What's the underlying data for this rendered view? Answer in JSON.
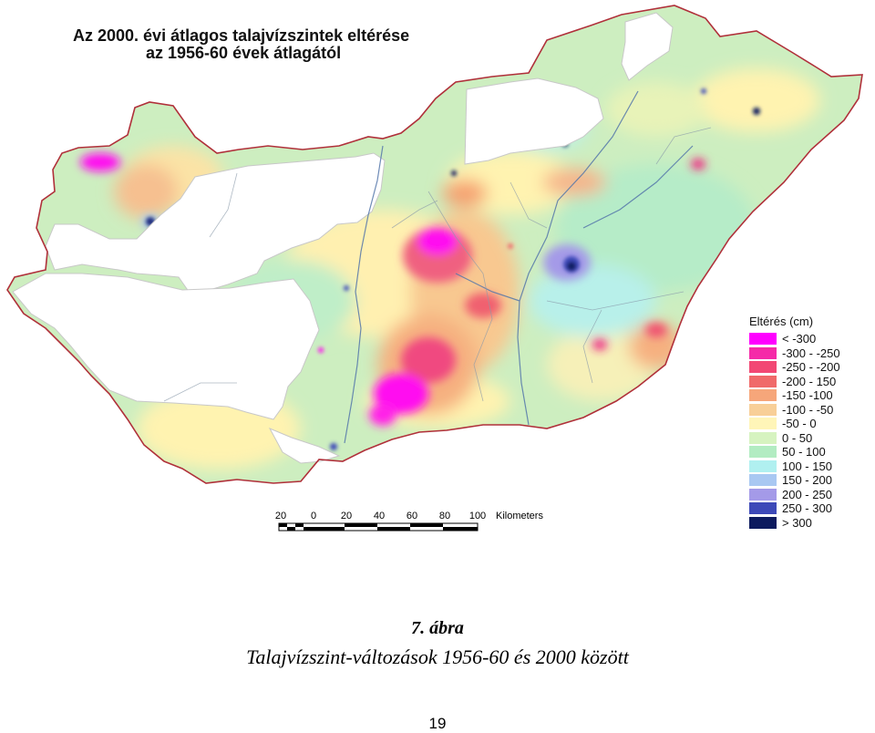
{
  "map": {
    "title_line1": "Az 2000. évi átlagos talajvízszintek eltérése",
    "title_line2": "az 1956-60 évek átlagától"
  },
  "legend": {
    "title": "Eltérés (cm)",
    "items": [
      {
        "label": "< -300",
        "color": "#ff00ff"
      },
      {
        "label": "-300 - -250",
        "color": "#f52aa8"
      },
      {
        "label": "-250 - -200",
        "color": "#f24874"
      },
      {
        "label": "-200 - 150",
        "color": "#f06a6a"
      },
      {
        "label": "-150 -100",
        "color": "#f6a67a"
      },
      {
        "label": "-100 - -50",
        "color": "#f8cf98"
      },
      {
        "label": "-50 - 0",
        "color": "#fff5b8"
      },
      {
        "label": "0 - 50",
        "color": "#d6f3c0"
      },
      {
        "label": "50 - 100",
        "color": "#b2ecc2"
      },
      {
        "label": "100 - 150",
        "color": "#b0f0f0"
      },
      {
        "label": "150 - 200",
        "color": "#a9c8f2"
      },
      {
        "label": "200 - 250",
        "color": "#a49ae8"
      },
      {
        "label": "250 - 300",
        "color": "#3d49b8"
      },
      {
        "label": "> 300",
        "color": "#0c1a5e"
      }
    ]
  },
  "scale": {
    "labels": [
      "20",
      "0",
      "20",
      "40",
      "60",
      "80",
      "100"
    ],
    "unit": "Kilometers"
  },
  "caption": {
    "figure_label": "7. ábra",
    "text": "Talajvízszint-változások 1956-60 és 2000 között"
  },
  "page_number": "19"
}
